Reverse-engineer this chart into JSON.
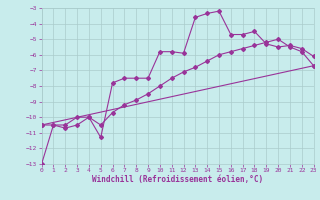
{
  "xlabel": "Windchill (Refroidissement éolien,°C)",
  "bg_color": "#c8ecec",
  "line_color": "#993399",
  "grid_color": "#aacccc",
  "xlim": [
    0,
    23
  ],
  "ylim": [
    -13,
    -3
  ],
  "xticks": [
    0,
    1,
    2,
    3,
    4,
    5,
    6,
    7,
    8,
    9,
    10,
    11,
    12,
    13,
    14,
    15,
    16,
    17,
    18,
    19,
    20,
    21,
    22,
    23
  ],
  "yticks": [
    -13,
    -12,
    -11,
    -10,
    -9,
    -8,
    -7,
    -6,
    -5,
    -4,
    -3
  ],
  "line1_x": [
    0,
    1,
    2,
    3,
    4,
    5,
    6,
    7,
    8,
    9,
    10,
    11,
    12,
    13,
    14,
    15,
    16,
    17,
    18,
    19,
    20,
    21,
    22,
    23
  ],
  "line1_y": [
    -13.0,
    -10.5,
    -10.7,
    -10.5,
    -10.0,
    -11.3,
    -7.8,
    -7.5,
    -7.5,
    -7.5,
    -5.8,
    -5.8,
    -5.9,
    -3.6,
    -3.35,
    -3.2,
    -4.7,
    -4.7,
    -4.5,
    -5.3,
    -5.5,
    -5.4,
    -5.6,
    -6.1
  ],
  "line2_x": [
    0,
    1,
    2,
    3,
    4,
    5,
    6,
    7,
    8,
    9,
    10,
    11,
    12,
    13,
    14,
    15,
    16,
    17,
    18,
    19,
    20,
    21,
    22,
    23
  ],
  "line2_y": [
    -10.5,
    -10.5,
    -10.5,
    -10.0,
    -10.0,
    -10.5,
    -9.7,
    -9.2,
    -8.9,
    -8.5,
    -8.0,
    -7.5,
    -7.1,
    -6.8,
    -6.4,
    -6.0,
    -5.8,
    -5.6,
    -5.4,
    -5.2,
    -5.0,
    -5.5,
    -5.8,
    -6.7
  ],
  "line3_x": [
    0,
    23
  ],
  "line3_y": [
    -10.5,
    -6.7
  ],
  "tick_fontsize": 4.5,
  "xlabel_fontsize": 5.5
}
